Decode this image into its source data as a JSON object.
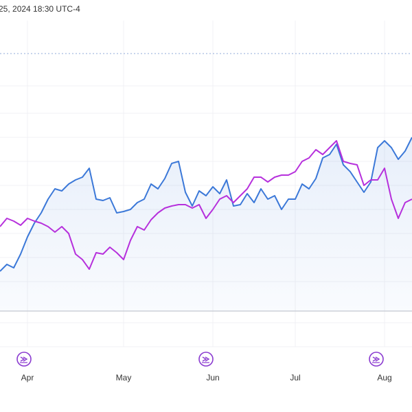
{
  "chart_data": {
    "type": "line",
    "title": "25, 2024 18:30 UTC-4",
    "categories": [
      null,
      null,
      null,
      null,
      "Apr",
      null,
      null,
      null,
      null,
      null,
      null,
      null,
      null,
      null,
      null,
      null,
      null,
      null,
      "May",
      null,
      null,
      null,
      null,
      null,
      null,
      null,
      null,
      null,
      null,
      null,
      null,
      "Jun",
      null,
      null,
      null,
      null,
      null,
      null,
      null,
      null,
      null,
      null,
      null,
      "Jul",
      null,
      null,
      null,
      null,
      null,
      null,
      null,
      null,
      null,
      null,
      null,
      null,
      "Aug",
      null,
      null,
      null,
      null
    ],
    "ylim": [
      0,
      400
    ],
    "series": [
      {
        "color": "#3b78d8",
        "values": [
          75,
          85,
          80,
          100,
          125,
          145,
          160,
          180,
          195,
          192,
          202,
          208,
          212,
          225,
          180,
          178,
          182,
          160,
          162,
          165,
          175,
          180,
          202,
          195,
          210,
          232,
          235,
          190,
          170,
          192,
          185,
          198,
          188,
          208,
          170,
          172,
          188,
          175,
          195,
          180,
          185,
          165,
          180,
          180,
          202,
          195,
          210,
          240,
          245,
          260,
          230,
          220,
          205,
          190,
          205,
          255,
          265,
          255,
          238,
          250,
          270
        ]
      },
      {
        "color": "#b630dc",
        "values": [
          140,
          152,
          148,
          142,
          152,
          148,
          145,
          140,
          132,
          140,
          130,
          100,
          92,
          78,
          102,
          100,
          110,
          102,
          92,
          120,
          140,
          135,
          150,
          160,
          167,
          170,
          172,
          172,
          167,
          172,
          152,
          165,
          180,
          185,
          175,
          185,
          195,
          212,
          212,
          205,
          212,
          215,
          215,
          220,
          235,
          240,
          252,
          245,
          255,
          265,
          235,
          232,
          230,
          200,
          208,
          208,
          225,
          180,
          152,
          175,
          180
        ]
      }
    ]
  }
}
